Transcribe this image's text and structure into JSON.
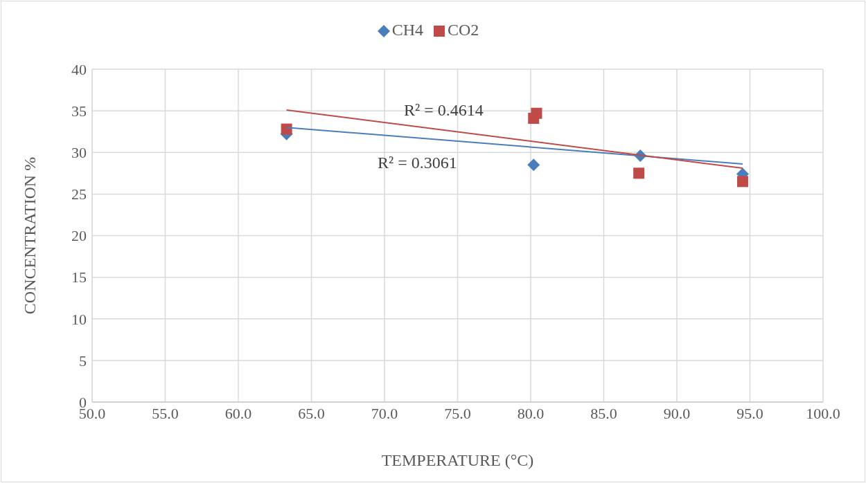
{
  "chart_data": {
    "type": "scatter",
    "xlabel": "TEMPERATURE (°C)",
    "ylabel": "CONCENTRATION %",
    "series": [
      {
        "name": "CH4",
        "color": "#4a7ebb",
        "marker": "diamond",
        "x": [
          63.3,
          80.2,
          87.5,
          94.5
        ],
        "values": [
          32.2,
          28.5,
          29.6,
          27.4
        ]
      },
      {
        "name": "CO2",
        "color": "#be4b48",
        "marker": "square",
        "x": [
          63.3,
          80.2,
          80.4,
          87.4,
          94.5
        ],
        "values": [
          32.8,
          34.1,
          34.7,
          27.5,
          26.5
        ]
      },
      {
        "type": "line",
        "color": "#4a7ebb",
        "marker": "none",
        "x": [
          63.3,
          94.5
        ],
        "values": [
          33.0,
          28.6
        ]
      },
      {
        "type": "line",
        "color": "#be4b48",
        "marker": "none",
        "x": [
          63.3,
          94.5
        ],
        "values": [
          35.1,
          28.1
        ]
      }
    ],
    "annotations": [
      "R² = 0.4614",
      "R² = 0.3061"
    ],
    "xlim": [
      50,
      100
    ],
    "xticks": [
      {
        "value": 50,
        "label": "50.0"
      },
      {
        "value": 55,
        "label": "55.0"
      },
      {
        "value": 60,
        "label": "60.0"
      },
      {
        "value": 65,
        "label": "65.0"
      },
      {
        "value": 70,
        "label": "70.0"
      },
      {
        "value": 75,
        "label": "75.0"
      },
      {
        "value": 80,
        "label": "80.0"
      },
      {
        "value": 85,
        "label": "85.0"
      },
      {
        "value": 90,
        "label": "90.0"
      },
      {
        "value": 95,
        "label": "95.0"
      },
      {
        "value": 100,
        "label": "100.0"
      }
    ],
    "ylim": [
      0,
      40
    ],
    "yticks": [
      0,
      5,
      10,
      15,
      20,
      25,
      30,
      35,
      40
    ],
    "grid": true,
    "legend": "top"
  }
}
